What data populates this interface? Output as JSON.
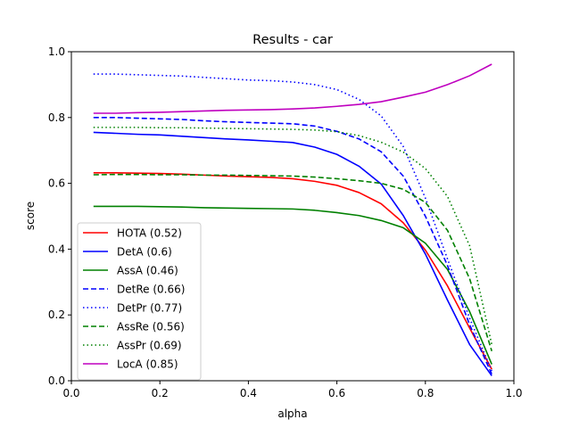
{
  "chart_data": {
    "type": "line",
    "title": "Results - car",
    "xlabel": "alpha",
    "ylabel": "score",
    "xlim": [
      0.0,
      1.0
    ],
    "ylim": [
      0.0,
      1.0
    ],
    "xticks": [
      0.0,
      0.2,
      0.4,
      0.6,
      0.8,
      1.0
    ],
    "xtick_labels": [
      "0.0",
      "0.2",
      "0.4",
      "0.6",
      "0.8",
      "1.0"
    ],
    "yticks": [
      0.0,
      0.2,
      0.4,
      0.6,
      0.8,
      1.0
    ],
    "ytick_labels": [
      "0.0",
      "0.2",
      "0.4",
      "0.6",
      "0.8",
      "1.0"
    ],
    "grid": false,
    "legend_position": "lower-left",
    "x": [
      0.05,
      0.1,
      0.15,
      0.2,
      0.25,
      0.3,
      0.35,
      0.4,
      0.45,
      0.5,
      0.55,
      0.6,
      0.65,
      0.7,
      0.75,
      0.8,
      0.85,
      0.9,
      0.95
    ],
    "series": [
      {
        "name": "HOTA (0.52)",
        "color": "#ff0000",
        "dash": "solid",
        "values": [
          0.632,
          0.632,
          0.631,
          0.63,
          0.628,
          0.625,
          0.622,
          0.62,
          0.618,
          0.614,
          0.606,
          0.594,
          0.572,
          0.538,
          0.48,
          0.397,
          0.288,
          0.16,
          0.035
        ]
      },
      {
        "name": "DetA (0.6)",
        "color": "#0000ff",
        "dash": "solid",
        "values": [
          0.755,
          0.752,
          0.749,
          0.747,
          0.743,
          0.739,
          0.735,
          0.732,
          0.728,
          0.724,
          0.71,
          0.688,
          0.652,
          0.598,
          0.502,
          0.385,
          0.245,
          0.11,
          0.015
        ]
      },
      {
        "name": "AssA (0.46)",
        "color": "#008000",
        "dash": "solid",
        "values": [
          0.53,
          0.53,
          0.53,
          0.529,
          0.528,
          0.526,
          0.525,
          0.524,
          0.523,
          0.522,
          0.518,
          0.511,
          0.502,
          0.487,
          0.465,
          0.418,
          0.338,
          0.21,
          0.05
        ]
      },
      {
        "name": "DetRe (0.66)",
        "color": "#0000ff",
        "dash": "dashed",
        "values": [
          0.8,
          0.8,
          0.798,
          0.796,
          0.794,
          0.79,
          0.787,
          0.785,
          0.783,
          0.781,
          0.774,
          0.758,
          0.735,
          0.696,
          0.622,
          0.5,
          0.35,
          0.17,
          0.02
        ]
      },
      {
        "name": "DetPr (0.77)",
        "color": "#0000ff",
        "dash": "dotted",
        "values": [
          0.932,
          0.932,
          0.93,
          0.928,
          0.926,
          0.922,
          0.918,
          0.914,
          0.912,
          0.908,
          0.9,
          0.885,
          0.855,
          0.805,
          0.712,
          0.555,
          0.37,
          0.19,
          0.03
        ]
      },
      {
        "name": "AssRe (0.56)",
        "color": "#008000",
        "dash": "dashed",
        "values": [
          0.626,
          0.627,
          0.627,
          0.626,
          0.626,
          0.625,
          0.625,
          0.624,
          0.623,
          0.622,
          0.619,
          0.614,
          0.608,
          0.6,
          0.582,
          0.542,
          0.457,
          0.31,
          0.09
        ]
      },
      {
        "name": "AssPr (0.69)",
        "color": "#008000",
        "dash": "dotted",
        "values": [
          0.77,
          0.77,
          0.77,
          0.769,
          0.769,
          0.768,
          0.767,
          0.766,
          0.765,
          0.764,
          0.762,
          0.757,
          0.745,
          0.725,
          0.695,
          0.645,
          0.56,
          0.41,
          0.11
        ]
      },
      {
        "name": "LocA (0.85)",
        "color": "#bf00bf",
        "dash": "solid",
        "values": [
          0.813,
          0.813,
          0.815,
          0.816,
          0.818,
          0.82,
          0.822,
          0.823,
          0.824,
          0.826,
          0.829,
          0.834,
          0.84,
          0.848,
          0.862,
          0.877,
          0.9,
          0.927,
          0.962
        ]
      }
    ]
  }
}
